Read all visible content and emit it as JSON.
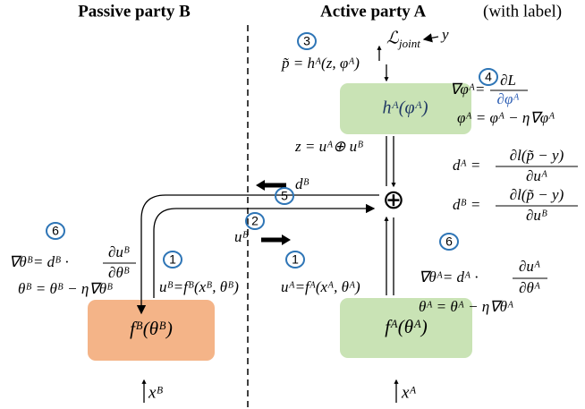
{
  "header": {
    "passive": "Passive party B",
    "active": "Active party A",
    "active_note": "(with label)"
  },
  "loss": {
    "symbol": "ℒ",
    "sub": "joint",
    "y": "y"
  },
  "p_tilde": "p̃ = hᴬ(z, φᴬ)",
  "boxes": {
    "h": "hᴬ(φᴬ)",
    "fB": "fᴮ(θᴮ)",
    "fA": "fᴬ(θᴬ)"
  },
  "grad_phi": {
    "lhs": "∇φᴬ=",
    "num": "∂L",
    "den": "∂φᴬ"
  },
  "phi_update": "φᴬ = φᴬ − η∇φᴬ",
  "z": "z = uᴬ⊕ uᴮ",
  "dA": {
    "lhs": "dᴬ =",
    "num": "∂l(p̃ − y)",
    "den": "∂uᴬ"
  },
  "dB": {
    "lhs": "dᴮ =",
    "num": "∂l(p̃ − y)",
    "den": "∂uᴮ"
  },
  "arrow_dB": "dᴮ",
  "arrow_uB": "uᴮ",
  "oplus": "⊕",
  "grad_thetaB": {
    "lhs": "∇θᴮ= dᴮ ·",
    "num": "∂uᴮ",
    "den": "∂θᴮ"
  },
  "thetaB_update": "θᴮ = θᴮ − η∇θᴮ",
  "uB_eq": "uᴮ=fᴮ(xᴮ, θᴮ)",
  "uA_eq": "uᴬ=fᴬ(xᴬ, θᴬ)",
  "grad_thetaA": {
    "lhs": "∇θᴬ= dᴬ ·",
    "num": "∂uᴬ",
    "den": "∂θᴬ"
  },
  "thetaA_update": "θᴬ = θᴬ − η∇θᴬ",
  "xB": "xᴮ",
  "xA": "xᴬ",
  "steps": [
    "3",
    "4",
    "5",
    "2",
    "1",
    "1",
    "6",
    "6"
  ]
}
